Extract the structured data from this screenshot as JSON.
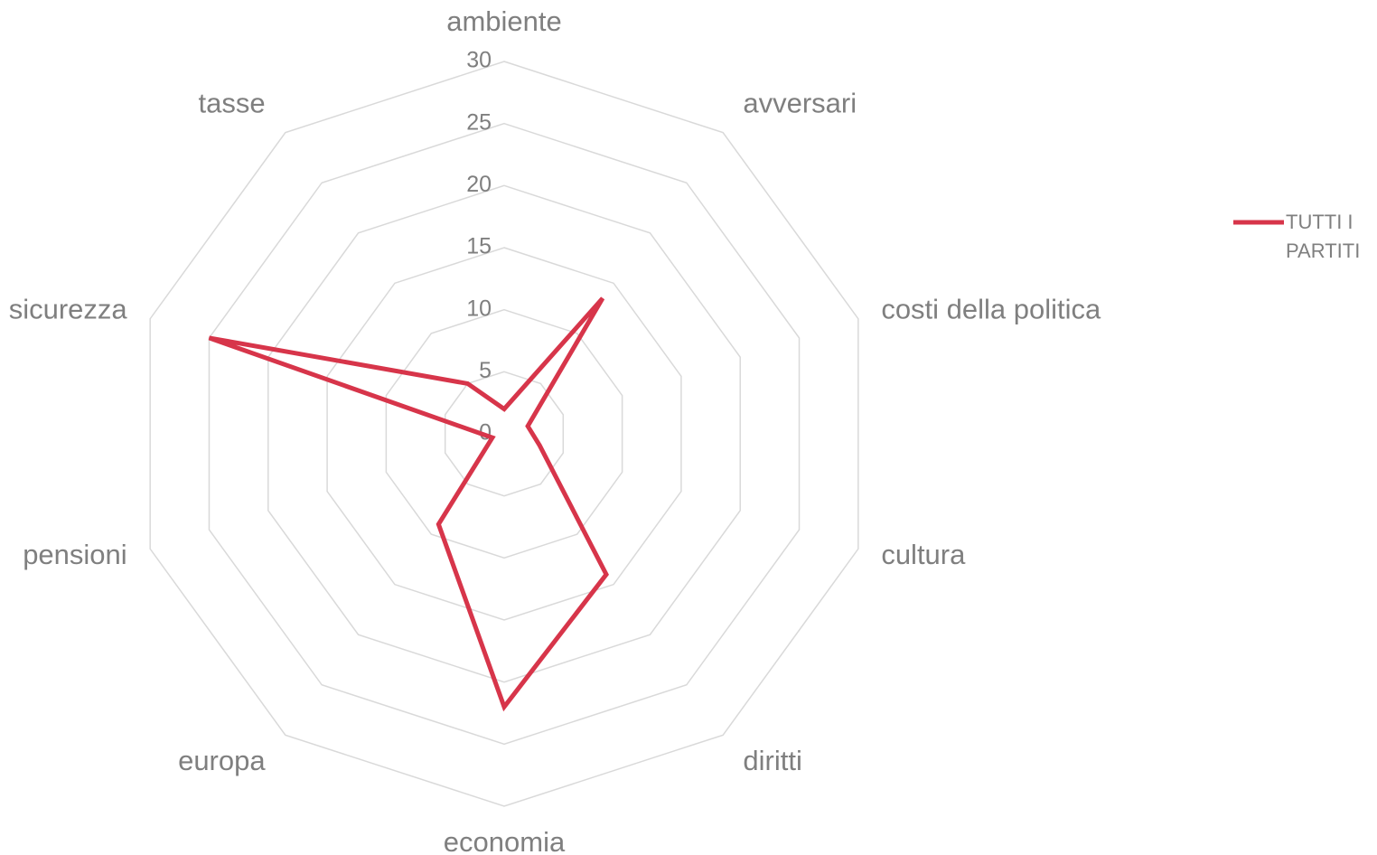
{
  "chart_data": {
    "type": "radar",
    "categories": [
      "ambiente",
      "avversari",
      "costi della politica",
      "cultura",
      "diritti",
      "economia",
      "europa",
      "pensioni",
      "sicurezza",
      "tasse"
    ],
    "series": [
      {
        "name": "TUTTI I PARTITI",
        "color": "#d7354a",
        "values": [
          2,
          13.5,
          2,
          3,
          14,
          22,
          9,
          1,
          25,
          5
        ]
      }
    ],
    "rlim": [
      0,
      30
    ],
    "rticks": [
      0,
      5,
      10,
      15,
      20,
      25,
      30
    ],
    "grid": true,
    "legend": "right"
  }
}
